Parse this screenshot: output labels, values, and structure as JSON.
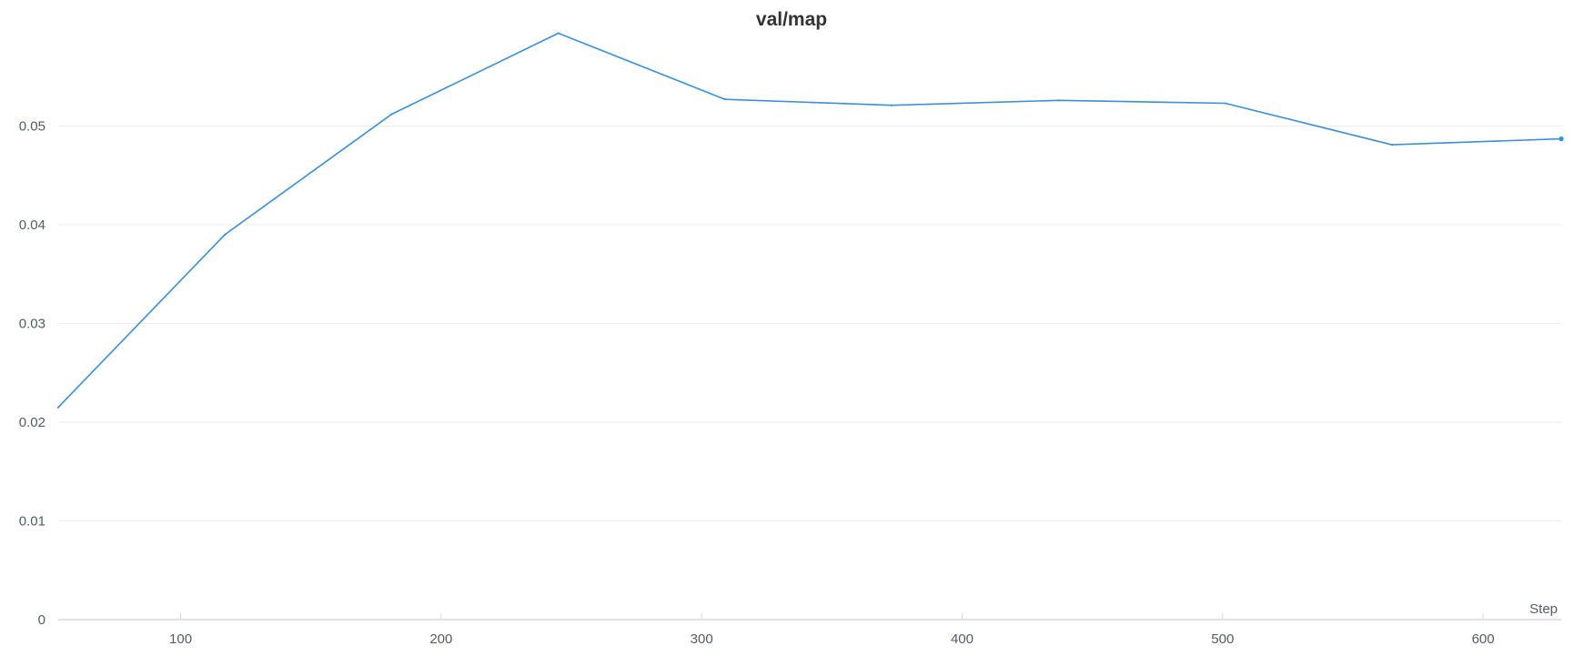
{
  "chart_data": {
    "type": "line",
    "title": "val/map",
    "xlabel": "Step",
    "ylabel": "",
    "xlim": [
      53,
      630
    ],
    "ylim": [
      0,
      0.06
    ],
    "x_ticks": [
      100,
      200,
      300,
      400,
      500,
      600
    ],
    "y_ticks": [
      0,
      0.01,
      0.02,
      0.03,
      0.04,
      0.05
    ],
    "y_tick_labels": [
      "0",
      "0.01",
      "0.02",
      "0.03",
      "0.04",
      "0.05"
    ],
    "grid": true,
    "legend": "none",
    "series": [
      {
        "color": "#3a8fd8",
        "x": [
          53,
          117,
          181,
          245,
          309,
          373,
          437,
          501,
          565,
          630
        ],
        "y": [
          0.0215,
          0.039,
          0.0512,
          0.0594,
          0.0527,
          0.0521,
          0.0526,
          0.0523,
          0.0481,
          0.0487
        ]
      }
    ]
  }
}
